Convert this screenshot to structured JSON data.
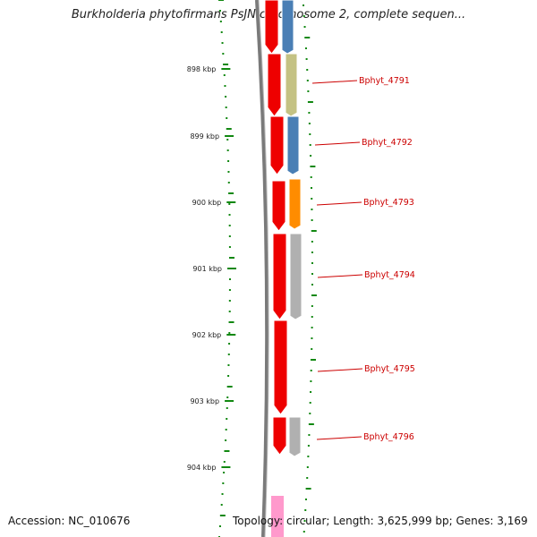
{
  "title": "Burkholderia phytofirmans PsJN chromosome 2, complete sequen...",
  "accession_text": "Accession: NC_010676",
  "info_text": "Topology: circular; Length: 3,625,999 bp; Genes: 3,169",
  "ruler": {
    "unit": "kbp",
    "labels": [
      "898 kbp",
      "899 kbp",
      "900 kbp",
      "901 kbp",
      "902 kbp",
      "903 kbp",
      "904 kbp"
    ]
  },
  "colors": {
    "tick": "#118811",
    "backbone": "#808080",
    "cds": "#ee0000",
    "callout": "#cc0000",
    "gene_blue": "#4a7fb5",
    "gene_khaki": "#c4c283",
    "gene_orange": "#ff8c00",
    "gene_gray": "#b0b0b0",
    "gene_pink": "#ff99cc"
  },
  "genes": [
    {
      "label": "Bphyt_4791",
      "color": "gene_khaki"
    },
    {
      "label": "Bphyt_4792",
      "color": "gene_blue"
    },
    {
      "label": "Bphyt_4793",
      "color": "gene_orange"
    },
    {
      "label": "Bphyt_4794",
      "color": "gene_gray"
    },
    {
      "label": "Bphyt_4795",
      "color": ""
    },
    {
      "label": "Bphyt_4796",
      "color": "gene_gray"
    }
  ]
}
